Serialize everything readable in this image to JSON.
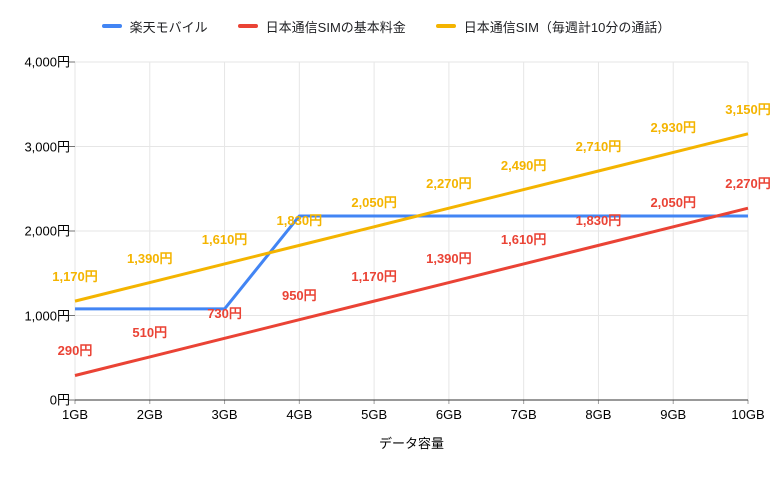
{
  "chart_data": {
    "type": "line",
    "title": "",
    "xlabel": "データ容量",
    "ylabel": "",
    "x_ticks": [
      "1GB",
      "2GB",
      "3GB",
      "4GB",
      "5GB",
      "6GB",
      "7GB",
      "8GB",
      "9GB",
      "10GB"
    ],
    "x_values": [
      1,
      2,
      3,
      4,
      5,
      6,
      7,
      8,
      9,
      10
    ],
    "ylim": [
      0,
      4000
    ],
    "y_ticks": [
      {
        "value": 0,
        "label": "0円"
      },
      {
        "value": 1000,
        "label": "1,000円"
      },
      {
        "value": 2000,
        "label": "2,000円"
      },
      {
        "value": 3000,
        "label": "3,000円"
      },
      {
        "value": 4000,
        "label": "4,000円"
      }
    ],
    "grid": true,
    "legend_position": "top",
    "series": [
      {
        "name": "楽天モバイル",
        "color": "#4285F4",
        "values": [
          1078,
          1078,
          1078,
          2178,
          2178,
          2178,
          2178,
          2178,
          2178,
          2178
        ],
        "labels": null
      },
      {
        "name": "日本通信SIMの基本料金",
        "color": "#EA4335",
        "values": [
          290,
          510,
          730,
          950,
          1170,
          1390,
          1610,
          1830,
          2050,
          2270
        ],
        "labels": [
          "290円",
          "510円",
          "730円",
          "950円",
          "1,170円",
          "1,390円",
          "1,610円",
          "1,830円",
          "2,050円",
          "2,270円"
        ]
      },
      {
        "name": "日本通信SIM（毎週計10分の通話）",
        "color": "#F4B400",
        "values": [
          1170,
          1390,
          1610,
          1830,
          2050,
          2270,
          2490,
          2710,
          2930,
          3150
        ],
        "labels": [
          "1,170円",
          "1,390円",
          "1,610円",
          "1,830円",
          "2,050円",
          "2,270円",
          "2,490円",
          "2,710円",
          "2,930円",
          "3,150円"
        ]
      }
    ]
  }
}
